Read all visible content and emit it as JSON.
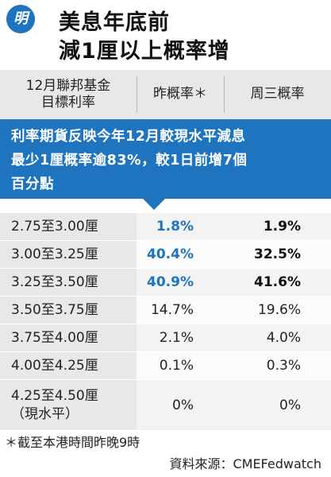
{
  "header": {
    "logo_text": "明",
    "title_line1": "美息年底前",
    "title_line2": "減1厘以上概率增"
  },
  "columns": {
    "col1": "12月聯邦基金目標利率",
    "col1_line1": "12月聯邦基金",
    "col1_line2": "目標利率",
    "col2": "昨概率＊",
    "col3": "周三概率"
  },
  "banner": {
    "line1": "利率期貨反映今年12月較現水平減息",
    "line2": "最少1厘概率逾83%，較1日前增7個",
    "line3": "百分點"
  },
  "rows": [
    {
      "range": "2.75至3.00厘",
      "range_sub": "",
      "yesterday": "1.8%",
      "wednesday": "1.9%",
      "highlight": true
    },
    {
      "range": "3.00至3.25厘",
      "range_sub": "",
      "yesterday": "40.4%",
      "wednesday": "32.5%",
      "highlight": true
    },
    {
      "range": "3.25至3.50厘",
      "range_sub": "",
      "yesterday": "40.9%",
      "wednesday": "41.6%",
      "highlight": true
    },
    {
      "range": "3.50至3.75厘",
      "range_sub": "",
      "yesterday": "14.7%",
      "wednesday": "19.6%",
      "highlight": false
    },
    {
      "range": "3.75至4.00厘",
      "range_sub": "",
      "yesterday": "2.1%",
      "wednesday": "4.0%",
      "highlight": false
    },
    {
      "range": "4.00至4.25厘",
      "range_sub": "",
      "yesterday": "0.1%",
      "wednesday": "0.3%",
      "highlight": false
    },
    {
      "range": "4.25至4.50厘",
      "range_sub": "（現水平）",
      "yesterday": "0%",
      "wednesday": "0%",
      "highlight": false
    }
  ],
  "colors": {
    "brand_blue": "#1f74c0",
    "header_gray": "#e8e8e8"
  },
  "footer": {
    "footnote": "＊截至本港時間昨晚9時",
    "source": "資料來源：CMEFedwatch"
  }
}
